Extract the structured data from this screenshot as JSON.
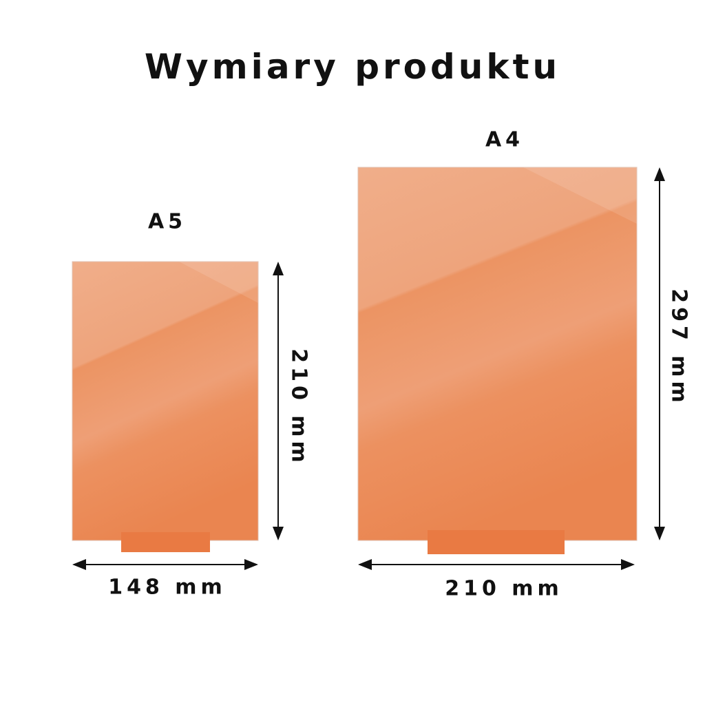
{
  "title": "Wymiary produktu",
  "products": [
    {
      "name": "A5",
      "width": "148 mm",
      "height": "210 mm"
    },
    {
      "name": "A4",
      "width": "210 mm",
      "height": "297 mm"
    }
  ],
  "colors": {
    "panel_light": "#f0ae8a",
    "panel_dark": "#ea8550",
    "base": "#e97a43",
    "text": "#111111"
  }
}
